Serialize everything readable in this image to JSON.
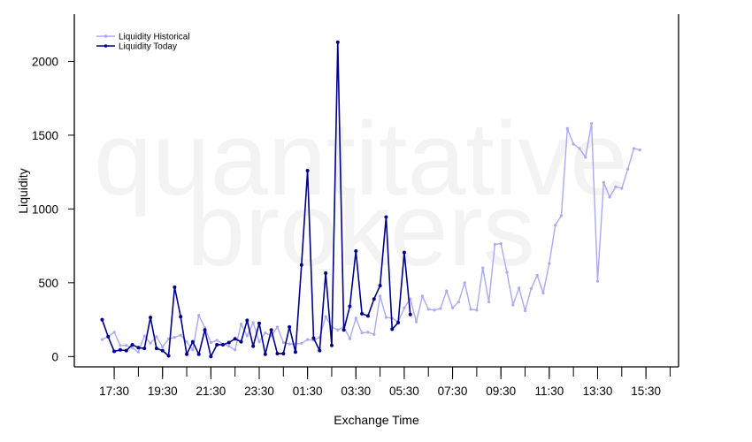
{
  "chart_data": {
    "type": "line",
    "title": "",
    "xlabel": "Exchange Time",
    "ylabel": "Liquidity",
    "watermark": [
      "quantitative",
      "brokers"
    ],
    "x_tick_labels": [
      "17:30",
      "19:30",
      "21:30",
      "23:30",
      "01:30",
      "03:30",
      "05:30",
      "07:30",
      "09:30",
      "11:30",
      "13:30",
      "15:30"
    ],
    "x_tick_hours_from_start": [
      0.5,
      2.5,
      4.5,
      6.5,
      8.5,
      10.5,
      12.5,
      14.5,
      16.5,
      18.5,
      20.5,
      22.5
    ],
    "x_domain_hours_from_start": [
      -1.15,
      23.85
    ],
    "x_start_time": "17:00",
    "y_ticks": [
      0,
      500,
      1000,
      1500,
      2000
    ],
    "ylim": [
      -70,
      2320
    ],
    "grid": false,
    "legend_position": "top-left",
    "series": [
      {
        "name": "Liquidity Historical",
        "color": "#aaaaf0",
        "interval_minutes": 15,
        "values": [
          115,
          135,
          165,
          75,
          75,
          60,
          30,
          140,
          90,
          135,
          65,
          120,
          130,
          145,
          100,
          45,
          280,
          195,
          95,
          110,
          85,
          70,
          45,
          220,
          140,
          230,
          100,
          160,
          140,
          200,
          95,
          85,
          85,
          90,
          115,
          110,
          130,
          270,
          200,
          180,
          200,
          120,
          260,
          160,
          165,
          150,
          410,
          265,
          260,
          235,
          330,
          390,
          235,
          410,
          320,
          315,
          325,
          445,
          330,
          370,
          500,
          320,
          315,
          600,
          370,
          760,
          765,
          570,
          350,
          465,
          310,
          460,
          550,
          430,
          630,
          890,
          955,
          1545,
          1440,
          1410,
          1350,
          1580,
          510,
          1180,
          1080,
          1150,
          1140,
          1270,
          1410,
          1400
        ]
      },
      {
        "name": "Liquidity Today",
        "color": "#00008b",
        "interval_minutes": 15,
        "values": [
          250,
          135,
          35,
          45,
          40,
          80,
          60,
          55,
          265,
          55,
          40,
          5,
          470,
          270,
          15,
          100,
          15,
          180,
          0,
          80,
          80,
          95,
          120,
          100,
          245,
          70,
          225,
          15,
          180,
          20,
          20,
          200,
          30,
          620,
          1260,
          125,
          40,
          565,
          75,
          2130,
          180,
          340,
          715,
          290,
          275,
          390,
          480,
          945,
          185,
          230,
          705,
          285
        ]
      }
    ]
  }
}
